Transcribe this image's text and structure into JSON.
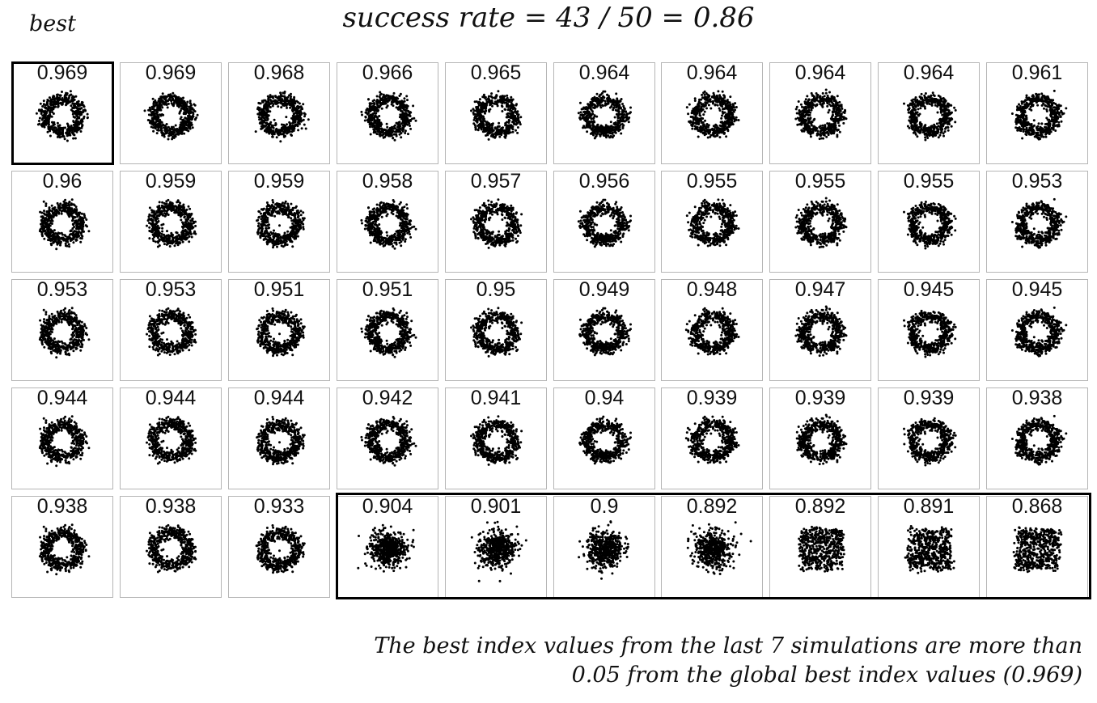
{
  "header": {
    "best_label": "best",
    "title": "success rate = 43 / 50 = 0.86"
  },
  "footnote": {
    "line1": "The best index values from the last 7 simulations are more than",
    "line2": "0.05 from the global best index values (0.969)"
  },
  "chart_data": {
    "type": "scatter",
    "title": "success rate = 43 / 50 = 0.86",
    "layout": "small multiples, 5 rows x 10 columns, sorted by best index value (descending)",
    "panel_labels_are": "best index value",
    "successes": 43,
    "total": 50,
    "success_rate": 0.86,
    "global_best": 0.969,
    "highlighted": {
      "best": [
        0
      ],
      "failed": [
        43,
        44,
        45,
        46,
        47,
        48,
        49
      ]
    },
    "panels": [
      {
        "label": "0.969",
        "value": 0.969,
        "shape": "ring"
      },
      {
        "label": "0.969",
        "value": 0.969,
        "shape": "ring"
      },
      {
        "label": "0.968",
        "value": 0.968,
        "shape": "ring"
      },
      {
        "label": "0.966",
        "value": 0.966,
        "shape": "ring"
      },
      {
        "label": "0.965",
        "value": 0.965,
        "shape": "ring"
      },
      {
        "label": "0.964",
        "value": 0.964,
        "shape": "ring"
      },
      {
        "label": "0.964",
        "value": 0.964,
        "shape": "ring"
      },
      {
        "label": "0.964",
        "value": 0.964,
        "shape": "ring"
      },
      {
        "label": "0.964",
        "value": 0.964,
        "shape": "ring"
      },
      {
        "label": "0.961",
        "value": 0.961,
        "shape": "ring"
      },
      {
        "label": "0.96",
        "value": 0.96,
        "shape": "ring"
      },
      {
        "label": "0.959",
        "value": 0.959,
        "shape": "ring"
      },
      {
        "label": "0.959",
        "value": 0.959,
        "shape": "ring"
      },
      {
        "label": "0.958",
        "value": 0.958,
        "shape": "ring"
      },
      {
        "label": "0.957",
        "value": 0.957,
        "shape": "ring"
      },
      {
        "label": "0.956",
        "value": 0.956,
        "shape": "ring"
      },
      {
        "label": "0.955",
        "value": 0.955,
        "shape": "ring"
      },
      {
        "label": "0.955",
        "value": 0.955,
        "shape": "ring"
      },
      {
        "label": "0.955",
        "value": 0.955,
        "shape": "ring"
      },
      {
        "label": "0.953",
        "value": 0.953,
        "shape": "ring"
      },
      {
        "label": "0.953",
        "value": 0.953,
        "shape": "ring"
      },
      {
        "label": "0.953",
        "value": 0.953,
        "shape": "ring"
      },
      {
        "label": "0.951",
        "value": 0.951,
        "shape": "ring"
      },
      {
        "label": "0.951",
        "value": 0.951,
        "shape": "ring"
      },
      {
        "label": "0.95",
        "value": 0.95,
        "shape": "ring"
      },
      {
        "label": "0.949",
        "value": 0.949,
        "shape": "ring"
      },
      {
        "label": "0.948",
        "value": 0.948,
        "shape": "ring"
      },
      {
        "label": "0.947",
        "value": 0.947,
        "shape": "ring"
      },
      {
        "label": "0.945",
        "value": 0.945,
        "shape": "ring"
      },
      {
        "label": "0.945",
        "value": 0.945,
        "shape": "ring"
      },
      {
        "label": "0.944",
        "value": 0.944,
        "shape": "ring"
      },
      {
        "label": "0.944",
        "value": 0.944,
        "shape": "ring"
      },
      {
        "label": "0.944",
        "value": 0.944,
        "shape": "ring"
      },
      {
        "label": "0.942",
        "value": 0.942,
        "shape": "ring"
      },
      {
        "label": "0.941",
        "value": 0.941,
        "shape": "ring"
      },
      {
        "label": "0.94",
        "value": 0.94,
        "shape": "ring"
      },
      {
        "label": "0.939",
        "value": 0.939,
        "shape": "ring"
      },
      {
        "label": "0.939",
        "value": 0.939,
        "shape": "ring"
      },
      {
        "label": "0.939",
        "value": 0.939,
        "shape": "ring"
      },
      {
        "label": "0.938",
        "value": 0.938,
        "shape": "ring"
      },
      {
        "label": "0.938",
        "value": 0.938,
        "shape": "ring"
      },
      {
        "label": "0.938",
        "value": 0.938,
        "shape": "ring"
      },
      {
        "label": "0.933",
        "value": 0.933,
        "shape": "ring"
      },
      {
        "label": "0.904",
        "value": 0.904,
        "shape": "blob"
      },
      {
        "label": "0.901",
        "value": 0.901,
        "shape": "blob"
      },
      {
        "label": "0.9",
        "value": 0.9,
        "shape": "blob"
      },
      {
        "label": "0.892",
        "value": 0.892,
        "shape": "blob"
      },
      {
        "label": "0.892",
        "value": 0.892,
        "shape": "square"
      },
      {
        "label": "0.891",
        "value": 0.891,
        "shape": "square"
      },
      {
        "label": "0.868",
        "value": 0.868,
        "shape": "square"
      }
    ]
  }
}
